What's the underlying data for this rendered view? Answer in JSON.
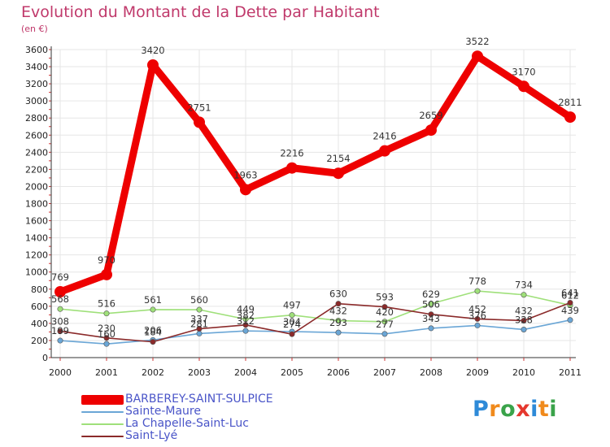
{
  "header": {
    "title": "Evolution du Montant de la Dette par Habitant",
    "unit": "(en €)"
  },
  "colors": {
    "title": "#c0396b",
    "legend_text": "#4a55c8",
    "axis": "#333333",
    "grid": "#e6e6e6"
  },
  "logo": {
    "text": "Proxiti",
    "letters": [
      "P",
      "r",
      "o",
      "x",
      "i",
      "t",
      "i"
    ],
    "letter_colors": [
      "#2e8ad8",
      "#f08a1c",
      "#3aa34a",
      "#e5382e",
      "#2e8ad8",
      "#f08a1c",
      "#3aa34a"
    ]
  },
  "chart_data": {
    "type": "line",
    "title": "Evolution du Montant de la Dette par Habitant",
    "subtitle": "(en €)",
    "xlabel": "",
    "ylabel": "",
    "x": [
      "2000",
      "2001",
      "2002",
      "2003",
      "2004",
      "2005",
      "2006",
      "2007",
      "2008",
      "2009",
      "2010",
      "2011"
    ],
    "ylim": [
      0,
      3600
    ],
    "yticks": [
      0,
      200,
      400,
      600,
      800,
      1000,
      1200,
      1400,
      1600,
      1800,
      2000,
      2200,
      2400,
      2600,
      2800,
      3000,
      3200,
      3400,
      3600
    ],
    "grid": true,
    "legend_position": "bottom-left",
    "series": [
      {
        "name": "BARBEREY-SAINT-SULPICE",
        "color": "#ee0000",
        "values": [
          769,
          970,
          3420,
          2751,
          1963,
          2216,
          2154,
          2416,
          2659,
          3522,
          3170,
          2811
        ],
        "labels": [
          "769",
          "970",
          "3420",
          "2751",
          "1963",
          "2216",
          "2154",
          "2416",
          "2659",
          "3522",
          "3170",
          "2811"
        ]
      },
      {
        "name": "Sainte-Maure",
        "color": "#6aa6d6",
        "values": [
          199,
          160,
          206,
          281,
          312,
          304,
          293,
          277,
          343,
          376,
          328,
          439
        ],
        "labels": [
          "199",
          "160",
          "206",
          "281",
          "312",
          "304",
          "293",
          "277",
          "343",
          "376",
          "328",
          "439"
        ]
      },
      {
        "name": "La Chapelle-Saint-Luc",
        "color": "#9fe07a",
        "values": [
          568,
          516,
          561,
          560,
          449,
          497,
          432,
          420,
          629,
          778,
          734,
          612
        ],
        "labels": [
          "568",
          "516",
          "561",
          "560",
          "449",
          "497",
          "432",
          "420",
          "629",
          "778",
          "734",
          "612"
        ]
      },
      {
        "name": "Saint-Lyé",
        "color": "#8b2a2a",
        "values": [
          308,
          230,
          184,
          337,
          382,
          274,
          630,
          593,
          506,
          452,
          432,
          641
        ],
        "labels": [
          "308",
          "230",
          "184",
          "337",
          "382",
          "274",
          "630",
          "593",
          "506",
          "452",
          "432",
          "641"
        ]
      }
    ]
  }
}
